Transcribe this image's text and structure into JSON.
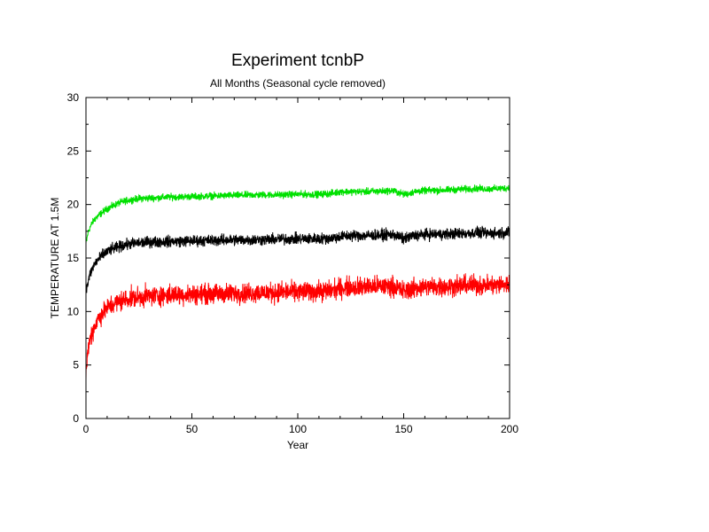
{
  "chart_data": {
    "type": "line",
    "title": "Experiment tcnbP",
    "subtitle": "All Months (Seasonal cycle removed)",
    "xlabel": "Year",
    "ylabel": "TEMPERATURE AT 1.5M",
    "xlim": [
      0,
      200
    ],
    "ylim": [
      0,
      30
    ],
    "xticks": [
      0,
      50,
      100,
      150,
      200
    ],
    "yticks": [
      0,
      5,
      10,
      15,
      20,
      25,
      30
    ],
    "grid": false,
    "legend": "none",
    "series": [
      {
        "color": "#00e000",
        "noise": 0.25,
        "x": [
          0,
          1,
          2,
          3,
          4,
          5,
          6,
          8,
          10,
          12,
          15,
          18,
          20,
          25,
          30,
          40,
          50,
          60,
          70,
          80,
          90,
          100,
          110,
          115,
          120,
          125,
          130,
          140,
          145,
          150,
          152,
          155,
          160,
          170,
          180,
          185,
          190,
          200
        ],
        "y": [
          16.3,
          17.4,
          17.9,
          18.3,
          18.6,
          18.8,
          19.0,
          19.3,
          19.6,
          19.8,
          20.1,
          20.3,
          20.4,
          20.55,
          20.6,
          20.7,
          20.75,
          20.8,
          20.85,
          20.9,
          20.9,
          20.95,
          20.95,
          21.0,
          21.2,
          21.2,
          21.2,
          21.25,
          21.3,
          20.95,
          21.0,
          21.2,
          21.3,
          21.35,
          21.45,
          21.5,
          21.45,
          21.55
        ]
      },
      {
        "color": "#000000",
        "noise": 0.4,
        "x": [
          0,
          1,
          2,
          3,
          4,
          5,
          6,
          8,
          10,
          12,
          15,
          18,
          20,
          25,
          30,
          40,
          50,
          60,
          70,
          80,
          90,
          100,
          110,
          115,
          120,
          125,
          130,
          140,
          145,
          150,
          152,
          155,
          160,
          170,
          180,
          185,
          190,
          200
        ],
        "y": [
          11.8,
          12.8,
          13.5,
          14.0,
          14.4,
          14.7,
          14.9,
          15.3,
          15.6,
          15.8,
          16.0,
          16.2,
          16.3,
          16.4,
          16.5,
          16.55,
          16.6,
          16.65,
          16.7,
          16.7,
          16.75,
          16.8,
          16.8,
          16.85,
          17.0,
          17.1,
          17.1,
          17.15,
          17.2,
          16.8,
          16.9,
          17.1,
          17.2,
          17.25,
          17.3,
          17.35,
          17.3,
          17.4
        ]
      },
      {
        "color": "#ff0000",
        "noise": 0.7,
        "x": [
          0,
          1,
          2,
          3,
          4,
          5,
          6,
          8,
          10,
          12,
          15,
          18,
          20,
          25,
          30,
          40,
          50,
          60,
          70,
          80,
          90,
          100,
          110,
          115,
          120,
          125,
          130,
          140,
          145,
          150,
          152,
          155,
          160,
          170,
          180,
          185,
          190,
          200
        ],
        "y": [
          4.3,
          6.5,
          7.5,
          8.1,
          8.6,
          9.0,
          9.4,
          9.9,
          10.3,
          10.6,
          10.9,
          11.1,
          11.2,
          11.35,
          11.45,
          11.55,
          11.6,
          11.65,
          11.7,
          11.75,
          11.8,
          11.85,
          11.9,
          11.95,
          12.2,
          12.3,
          12.3,
          12.35,
          12.4,
          11.9,
          12.0,
          12.2,
          12.3,
          12.35,
          12.45,
          12.5,
          12.45,
          12.55
        ]
      }
    ]
  }
}
